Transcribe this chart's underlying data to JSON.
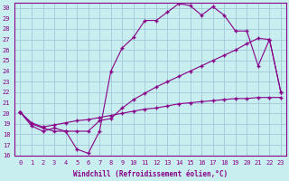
{
  "xlabel": "Windchill (Refroidissement éolien,°C)",
  "bg_color": "#c8eef0",
  "grid_color": "#a0c8d8",
  "line_color": "#880088",
  "xlim": [
    -0.5,
    23.5
  ],
  "ylim": [
    16,
    30.5
  ],
  "xticks": [
    0,
    1,
    2,
    3,
    4,
    5,
    6,
    7,
    8,
    9,
    10,
    11,
    12,
    13,
    14,
    15,
    16,
    17,
    18,
    19,
    20,
    21,
    22,
    23
  ],
  "yticks": [
    16,
    17,
    18,
    19,
    20,
    21,
    22,
    23,
    24,
    25,
    26,
    27,
    28,
    29,
    30
  ],
  "line1_x": [
    0,
    1,
    2,
    3,
    4,
    5,
    6,
    7,
    8,
    9,
    10,
    11,
    12,
    13,
    14,
    15,
    16,
    17,
    18,
    19,
    20,
    21,
    22,
    23
  ],
  "line1_y": [
    20.1,
    19.0,
    18.6,
    18.3,
    18.3,
    16.6,
    16.2,
    18.3,
    24.0,
    26.2,
    27.2,
    28.8,
    28.8,
    29.6,
    30.4,
    30.2,
    29.3,
    30.1,
    29.3,
    27.8,
    27.8,
    24.5,
    27.0,
    22.0
  ],
  "line2_x": [
    0,
    1,
    2,
    3,
    4,
    5,
    6,
    7,
    8,
    9,
    10,
    11,
    12,
    13,
    14,
    15,
    16,
    17,
    18,
    19,
    20,
    21,
    22,
    23
  ],
  "line2_y": [
    20.1,
    18.8,
    18.3,
    18.6,
    18.3,
    18.3,
    18.3,
    19.3,
    19.5,
    20.5,
    21.3,
    21.9,
    22.5,
    23.0,
    23.5,
    24.0,
    24.5,
    25.0,
    25.5,
    26.0,
    26.6,
    27.1,
    27.0,
    22.0
  ],
  "line3_x": [
    0,
    1,
    2,
    3,
    4,
    5,
    6,
    7,
    8,
    9,
    10,
    11,
    12,
    13,
    14,
    15,
    16,
    17,
    18,
    19,
    20,
    21,
    22,
    23
  ],
  "line3_y": [
    20.1,
    19.1,
    18.7,
    18.9,
    19.1,
    19.3,
    19.4,
    19.6,
    19.8,
    20.0,
    20.2,
    20.4,
    20.5,
    20.7,
    20.9,
    21.0,
    21.1,
    21.2,
    21.3,
    21.4,
    21.4,
    21.5,
    21.5,
    21.5
  ]
}
